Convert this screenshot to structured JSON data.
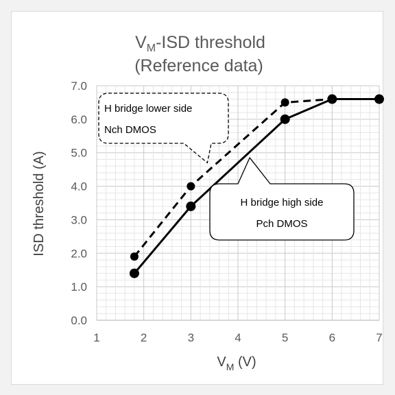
{
  "chart_data": {
    "type": "line",
    "title": {
      "main": "V",
      "sub": "M",
      "rest": "-ISD threshold"
    },
    "subtitle": "(Reference data)",
    "xlabel": {
      "main": "V",
      "sub": "M",
      "rest": " (V)"
    },
    "ylabel": "ISD threshold (A)",
    "xlim": [
      1,
      7
    ],
    "ylim": [
      0,
      7
    ],
    "x_ticks": [
      1,
      2,
      3,
      4,
      5,
      6,
      7
    ],
    "y_ticks": [
      "0.0",
      "1.0",
      "2.0",
      "3.0",
      "4.0",
      "5.0",
      "6.0",
      "7.0"
    ],
    "grid": true,
    "series": [
      {
        "style": "solid",
        "color": "#000000",
        "x": [
          1.8,
          3,
          5,
          6,
          7
        ],
        "y": [
          1.4,
          3.4,
          6.0,
          6.6,
          6.6
        ]
      },
      {
        "style": "dashed",
        "color": "#000000",
        "x": [
          1.8,
          3,
          5,
          6,
          7
        ],
        "y": [
          1.9,
          4.0,
          6.5,
          6.6,
          6.6
        ]
      }
    ],
    "annotations": [
      {
        "lines": [
          "H bridge lower side",
          "Nch DMOS"
        ],
        "target": [
          3.35,
          4.7
        ],
        "style": "dashed"
      },
      {
        "lines": [
          "H bridge high side",
          "Pch DMOS"
        ],
        "target": [
          4.25,
          4.85
        ],
        "style": "solid"
      }
    ]
  }
}
